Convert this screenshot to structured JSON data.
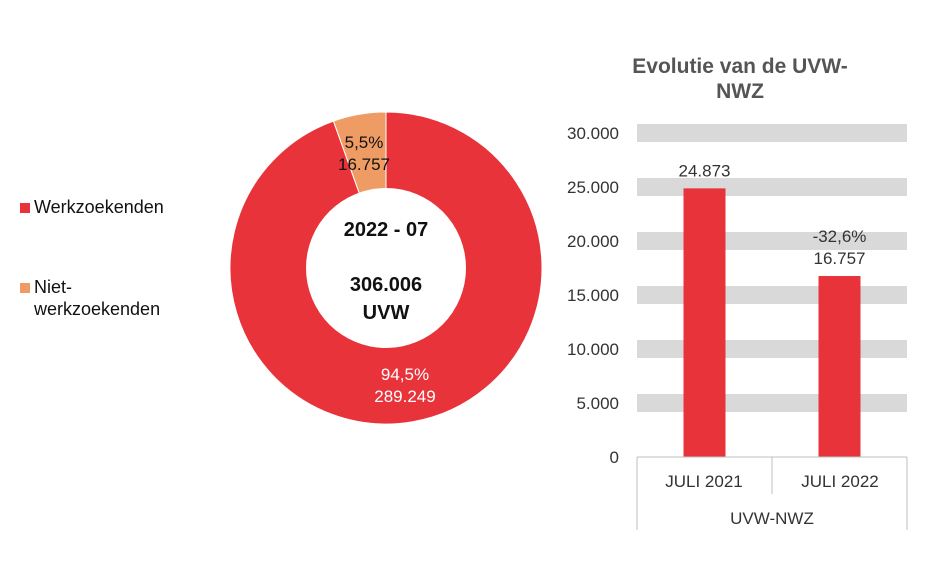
{
  "colors": {
    "werkzoekenden": "#e8333a",
    "niet": "#ef9c64",
    "grid": "#d9d9d9",
    "axis": "#bfbfbf"
  },
  "legend": [
    {
      "label": "Werkzoekenden",
      "color": "#e8333a"
    },
    {
      "label": "Niet-werkzoekenden",
      "color": "#ef9c64"
    }
  ],
  "chart_data": [
    {
      "type": "pie",
      "variant": "donut",
      "center": {
        "period": "2022 - 07",
        "total": "306.006",
        "unit": "UVW"
      },
      "slices": [
        {
          "name": "Werkzoekenden",
          "value": 289249,
          "percent_label": "94,5%",
          "value_label": "289.249",
          "color": "#e8333a"
        },
        {
          "name": "Niet-werkzoekenden",
          "value": 16757,
          "percent_label": "5,5%",
          "value_label": "16.757",
          "color": "#ef9c64"
        }
      ]
    },
    {
      "type": "bar",
      "title": "Evolutie van de UVW-NWZ",
      "title_lines": [
        "Evolutie van de UVW-",
        "NWZ"
      ],
      "categories": [
        "JULI 2021",
        "JULI 2022"
      ],
      "group_label": "UVW-NWZ",
      "values": [
        24873,
        16757
      ],
      "data_labels": [
        {
          "lines": [
            "24.873"
          ]
        },
        {
          "lines": [
            "-32,6%",
            "16.757"
          ]
        }
      ],
      "ylim": [
        0,
        30000
      ],
      "yticks": [
        0,
        5000,
        10000,
        15000,
        20000,
        25000,
        30000
      ],
      "ytick_labels": [
        "0",
        "5.000",
        "10.000",
        "15.000",
        "20.000",
        "25.000",
        "30.000"
      ],
      "grid": true,
      "color": "#e8333a"
    }
  ]
}
